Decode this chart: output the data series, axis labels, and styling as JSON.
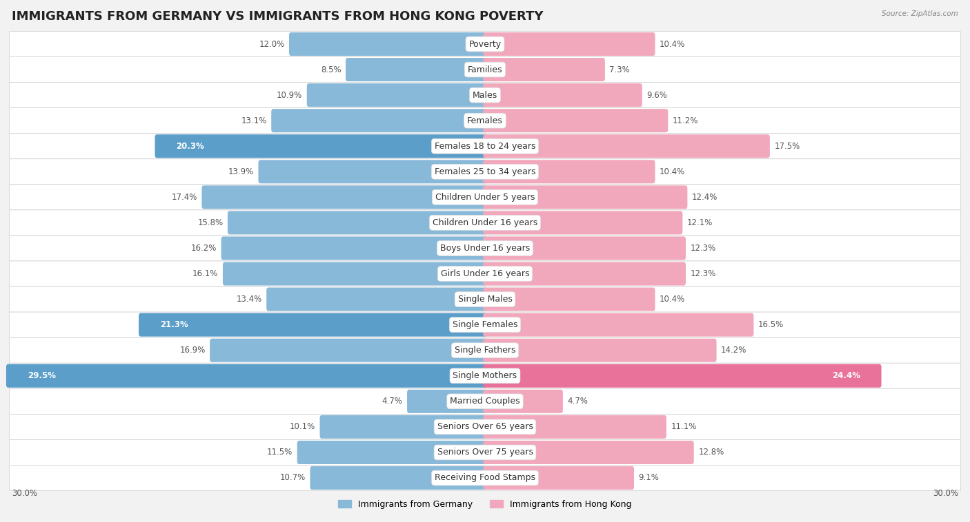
{
  "title": "IMMIGRANTS FROM GERMANY VS IMMIGRANTS FROM HONG KONG POVERTY",
  "source": "Source: ZipAtlas.com",
  "categories": [
    "Poverty",
    "Families",
    "Males",
    "Females",
    "Females 18 to 24 years",
    "Females 25 to 34 years",
    "Children Under 5 years",
    "Children Under 16 years",
    "Boys Under 16 years",
    "Girls Under 16 years",
    "Single Males",
    "Single Females",
    "Single Fathers",
    "Single Mothers",
    "Married Couples",
    "Seniors Over 65 years",
    "Seniors Over 75 years",
    "Receiving Food Stamps"
  ],
  "germany_values": [
    12.0,
    8.5,
    10.9,
    13.1,
    20.3,
    13.9,
    17.4,
    15.8,
    16.2,
    16.1,
    13.4,
    21.3,
    16.9,
    29.5,
    4.7,
    10.1,
    11.5,
    10.7
  ],
  "hongkong_values": [
    10.4,
    7.3,
    9.6,
    11.2,
    17.5,
    10.4,
    12.4,
    12.1,
    12.3,
    12.3,
    10.4,
    16.5,
    14.2,
    24.4,
    4.7,
    11.1,
    12.8,
    9.1
  ],
  "germany_color": "#89b9d9",
  "hongkong_color": "#f2a8bc",
  "germany_color_highlight": "#5a9ec9",
  "hongkong_color_highlight": "#e8729a",
  "bg_color": "#f2f2f2",
  "row_color_light": "#ffffff",
  "row_color_dark": "#e8e8e8",
  "max_val": 30.0,
  "title_fontsize": 13,
  "label_fontsize": 9.0,
  "value_fontsize": 8.5,
  "legend_label_germany": "Immigrants from Germany",
  "legend_label_hongkong": "Immigrants from Hong Kong",
  "highlight_threshold": 20.0
}
